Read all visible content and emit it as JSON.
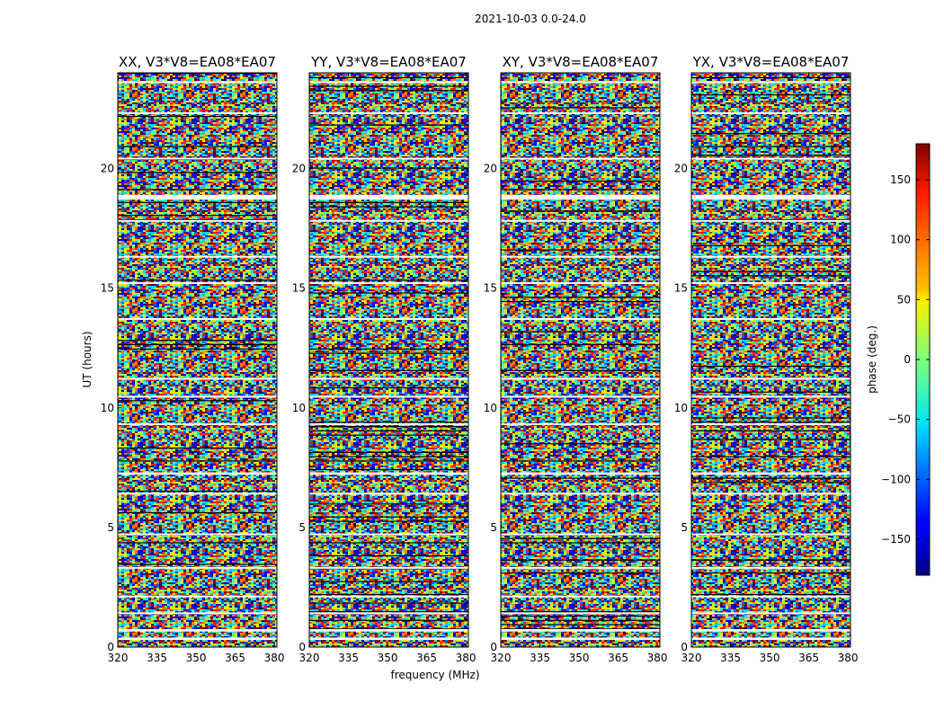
{
  "page_title": "2021-10-03 0.0-24.0",
  "chart_data": {
    "type": "heatmap",
    "title": "2021-10-03 0.0-24.0",
    "xlabel": "frequency (MHz)",
    "ylabel": "UT (hours)",
    "xlim": [
      320,
      381
    ],
    "ylim": [
      0,
      24
    ],
    "x_ticks": [
      320,
      335,
      350,
      365,
      380
    ],
    "y_ticks": [
      0,
      5,
      10,
      15,
      20
    ],
    "colormap": "jet",
    "colorbar": {
      "label": "phase (deg.)",
      "range": [
        -180,
        180
      ],
      "ticks": [
        150,
        100,
        50,
        0,
        -50,
        -100,
        -150
      ],
      "tick_labels": [
        "150",
        "100",
        "50",
        "0",
        "−50",
        "−100",
        "−150"
      ]
    },
    "panels": [
      {
        "title": "XX, V3*V8=EA08*EA07"
      },
      {
        "title": "YY, V3*V8=EA08*EA07"
      },
      {
        "title": "XY, V3*V8=EA08*EA07"
      },
      {
        "title": "YX, V3*V8=EA08*EA07"
      }
    ],
    "flagged_bands_ut": [
      [
        0.3,
        0.4
      ],
      [
        0.65,
        0.75
      ],
      [
        1.4,
        1.45
      ],
      [
        2.1,
        2.15
      ],
      [
        3.3,
        3.35
      ],
      [
        4.7,
        4.75
      ],
      [
        6.4,
        6.45
      ],
      [
        7.2,
        7.3
      ],
      [
        9.3,
        9.35
      ],
      [
        10.45,
        10.5
      ],
      [
        11.2,
        11.25
      ],
      [
        13.7,
        13.75
      ],
      [
        15.2,
        15.25
      ],
      [
        16.3,
        16.35
      ],
      [
        17.8,
        17.85
      ],
      [
        18.7,
        18.9
      ],
      [
        20.4,
        20.45
      ],
      [
        22.3,
        22.35
      ],
      [
        23.6,
        23.65
      ]
    ]
  }
}
